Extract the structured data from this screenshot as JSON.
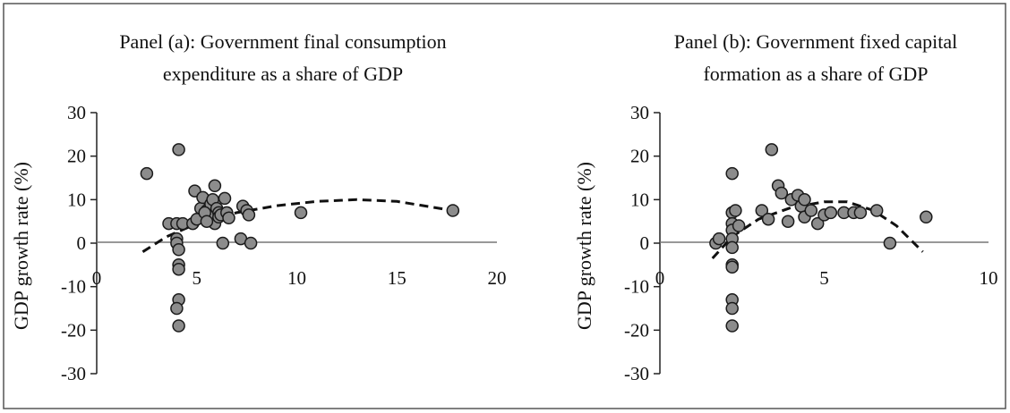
{
  "chart_data": [
    {
      "type": "scatter",
      "title": [
        "Panel (a): Government final consumption",
        "expenditure as a share of GDP"
      ],
      "xlabel": "",
      "ylabel": "GDP growth rate (%)",
      "xlim": [
        0,
        20
      ],
      "ylim": [
        -30,
        30
      ],
      "xticks": [
        0,
        5,
        10,
        15,
        20
      ],
      "yticks": [
        30,
        20,
        10,
        0,
        -10,
        -20,
        -30
      ],
      "grid": false,
      "legend": "none",
      "points": [
        [
          2.5,
          16
        ],
        [
          4.1,
          21.5
        ],
        [
          3.6,
          4.5
        ],
        [
          4.0,
          4.5
        ],
        [
          4.0,
          1
        ],
        [
          4.0,
          0
        ],
        [
          4.1,
          -1.5
        ],
        [
          4.1,
          -5
        ],
        [
          4.1,
          -6
        ],
        [
          4.1,
          -13
        ],
        [
          4.0,
          -15
        ],
        [
          4.1,
          -19
        ],
        [
          4.3,
          4.5
        ],
        [
          4.8,
          4.5
        ],
        [
          4.9,
          12
        ],
        [
          5.0,
          5.5
        ],
        [
          5.2,
          8
        ],
        [
          5.3,
          10.5
        ],
        [
          5.5,
          7.5
        ],
        [
          5.6,
          6.5
        ],
        [
          5.7,
          9
        ],
        [
          5.8,
          10
        ],
        [
          5.9,
          4.5
        ],
        [
          5.9,
          13.2
        ],
        [
          6.0,
          8
        ],
        [
          6.1,
          7
        ],
        [
          6.1,
          6
        ],
        [
          6.2,
          6.5
        ],
        [
          6.3,
          0
        ],
        [
          6.4,
          10.3
        ],
        [
          6.5,
          7
        ],
        [
          6.6,
          5.8
        ],
        [
          5.4,
          7
        ],
        [
          5.5,
          5
        ],
        [
          7.2,
          1
        ],
        [
          7.3,
          8.5
        ],
        [
          7.5,
          7.5
        ],
        [
          7.6,
          6.5
        ],
        [
          7.7,
          0
        ],
        [
          10.2,
          7
        ],
        [
          17.8,
          7.5
        ]
      ],
      "trend": {
        "style": "dashed",
        "x": [
          2.3,
          3.5,
          5,
          7,
          9,
          11,
          13,
          15,
          17.8
        ],
        "y": [
          -2,
          1.5,
          4.5,
          7,
          8.6,
          9.6,
          10,
          9.6,
          7.5
        ]
      }
    },
    {
      "type": "scatter",
      "title": [
        "Panel (b): Government fixed capital",
        "formation as a share of GDP"
      ],
      "xlabel": "",
      "ylabel": "GDP growth rate (%)",
      "xlim": [
        0,
        10
      ],
      "ylim": [
        -30,
        30
      ],
      "xticks": [
        0,
        5,
        10
      ],
      "yticks": [
        30,
        20,
        10,
        0,
        -10,
        -20,
        -30
      ],
      "grid": false,
      "legend": "none",
      "points": [
        [
          1.7,
          0
        ],
        [
          1.8,
          1
        ],
        [
          2.2,
          16
        ],
        [
          2.2,
          7
        ],
        [
          2.2,
          4.5
        ],
        [
          2.2,
          3
        ],
        [
          2.2,
          1
        ],
        [
          2.2,
          -1
        ],
        [
          2.2,
          -5
        ],
        [
          2.2,
          -5.5
        ],
        [
          2.2,
          -13
        ],
        [
          2.2,
          -15
        ],
        [
          2.2,
          -19
        ],
        [
          2.3,
          7.5
        ],
        [
          2.4,
          4
        ],
        [
          3.1,
          7.5
        ],
        [
          3.3,
          5.5
        ],
        [
          3.4,
          21.5
        ],
        [
          3.6,
          13.2
        ],
        [
          3.7,
          11.5
        ],
        [
          3.9,
          5
        ],
        [
          4.0,
          10
        ],
        [
          4.2,
          11
        ],
        [
          4.3,
          8.5
        ],
        [
          4.4,
          6
        ],
        [
          4.4,
          10
        ],
        [
          4.6,
          7.5
        ],
        [
          4.8,
          4.5
        ],
        [
          5.0,
          6.5
        ],
        [
          5.2,
          7
        ],
        [
          5.6,
          7
        ],
        [
          5.9,
          7
        ],
        [
          6.1,
          7
        ],
        [
          6.6,
          7.5
        ],
        [
          7.0,
          0
        ],
        [
          8.1,
          6
        ]
      ],
      "trend": {
        "style": "dashed",
        "x": [
          1.6,
          2.2,
          3,
          4,
          5,
          5.7,
          6.5,
          7.2,
          8.0
        ],
        "y": [
          -3.5,
          1.5,
          5.5,
          8.2,
          9.5,
          9.5,
          7.5,
          4,
          -2
        ]
      }
    }
  ]
}
